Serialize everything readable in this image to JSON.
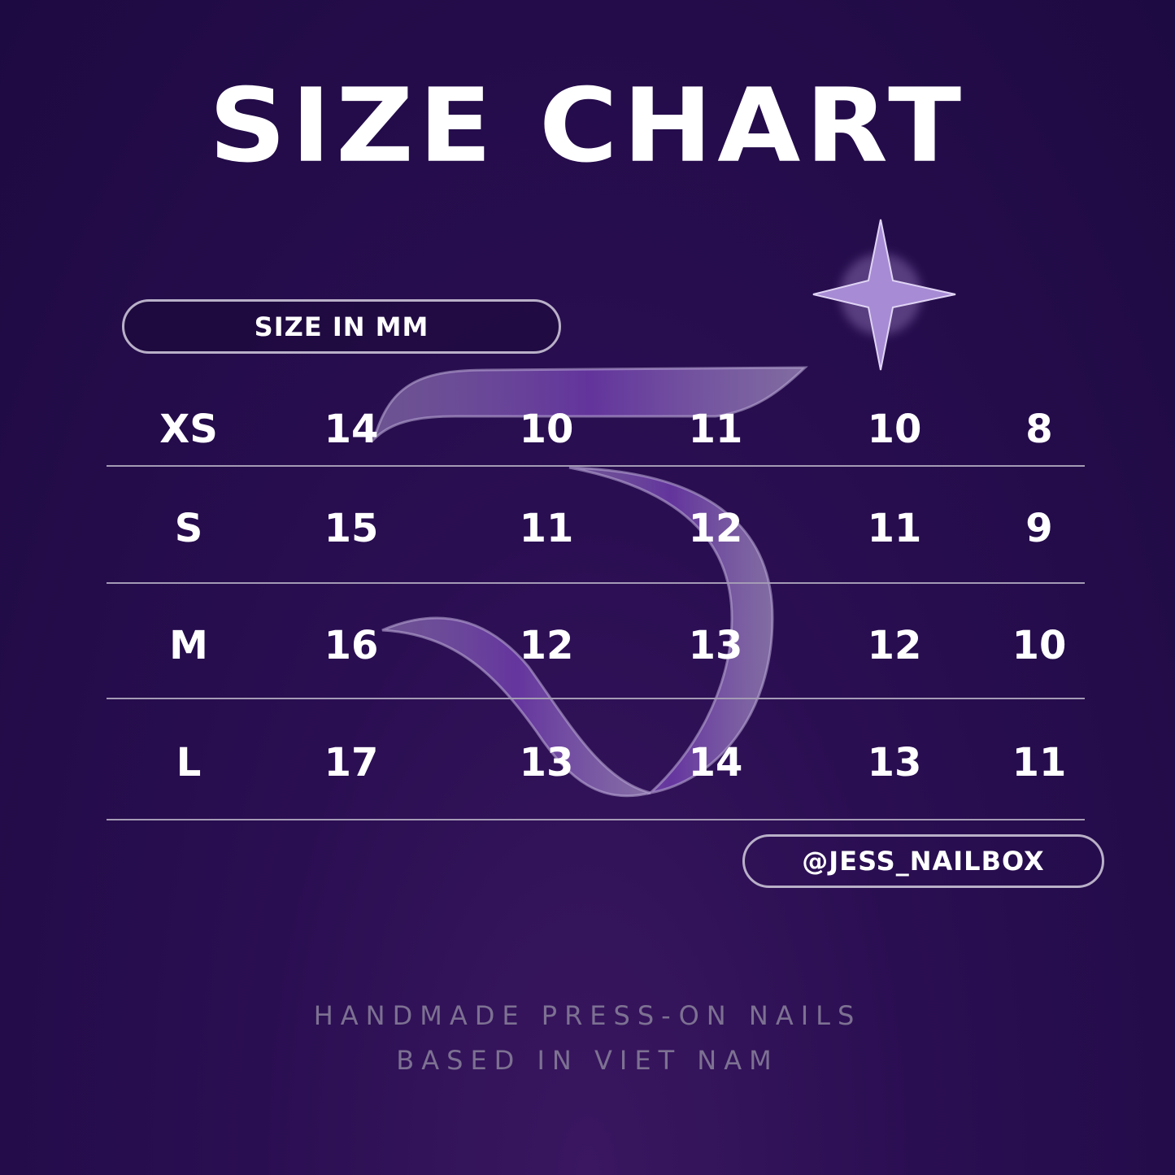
{
  "title": "SIZE CHART",
  "unit_label": "SIZE IN MM",
  "handle": "@JESS_NAILBOX",
  "rows": [
    {
      "size": "XS",
      "values": [
        "14",
        "10",
        "11",
        "10",
        "8"
      ]
    },
    {
      "size": "S",
      "values": [
        "15",
        "11",
        "12",
        "11",
        "9"
      ]
    },
    {
      "size": "M",
      "values": [
        "16",
        "12",
        "13",
        "12",
        "10"
      ]
    },
    {
      "size": "L",
      "values": [
        "17",
        "13",
        "14",
        "13",
        "11"
      ]
    }
  ],
  "footer": {
    "line1": "HANDMADE PRESS-ON NAILS",
    "line2": "BASED IN VIET NAM"
  },
  "colors": {
    "background": "#1e0a42",
    "accent": "#8a4fd0",
    "text": "#ffffff",
    "footer": "#7d7192"
  }
}
